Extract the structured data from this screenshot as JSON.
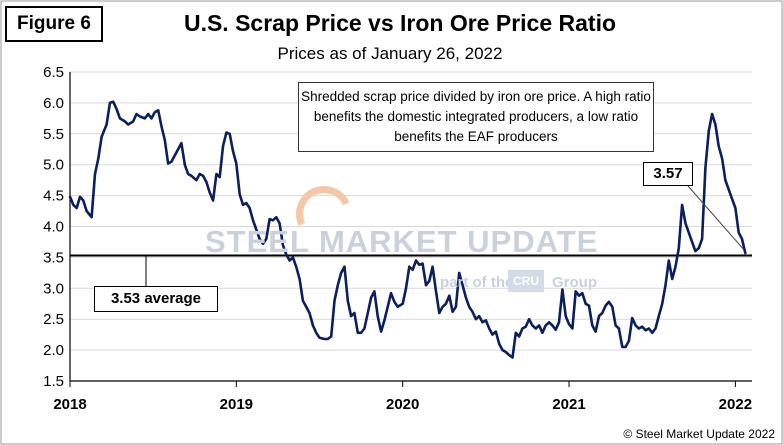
{
  "figure_label": "Figure 6",
  "copyright": "© Steel Market Update 2022",
  "watermark": {
    "brand": "STEEL MARKET UPDATE",
    "tagline_left": "part of the",
    "cru": "CRU",
    "tagline_right": "Group"
  },
  "colors": {
    "line": "#0b1f5c",
    "average": "#000000",
    "grid": "#d9d9d9"
  },
  "chart_data": {
    "type": "line",
    "title": "U.S. Scrap Price vs Iron Ore Price Ratio",
    "subtitle": "Prices as of January 26, 2022",
    "annotation": "Shredded  scrap price divided by iron ore price. A high ratio benefits the domestic integrated producers, a low ratio benefits the EAF producers",
    "average": {
      "value": 3.53,
      "label": "3.53 average"
    },
    "last_value_label": "3.57",
    "xlim": [
      2018.0,
      2022.1
    ],
    "ylim": [
      1.5,
      6.5
    ],
    "y_ticks": [
      "1.5",
      "2.0",
      "2.5",
      "3.0",
      "3.5",
      "4.0",
      "4.5",
      "5.0",
      "5.5",
      "6.0",
      "6.5"
    ],
    "x_ticks": [
      {
        "value": 2018,
        "label": "2018"
      },
      {
        "value": 2019,
        "label": "2019"
      },
      {
        "value": 2020,
        "label": "2020"
      },
      {
        "value": 2021,
        "label": "2021"
      },
      {
        "value": 2022,
        "label": "2022"
      }
    ],
    "grid": "horizontal",
    "series": [
      {
        "values": [
          [
            2018.0,
            4.48
          ],
          [
            2018.02,
            4.35
          ],
          [
            2018.04,
            4.3
          ],
          [
            2018.06,
            4.48
          ],
          [
            2018.08,
            4.42
          ],
          [
            2018.1,
            4.25
          ],
          [
            2018.13,
            4.15
          ],
          [
            2018.15,
            4.85
          ],
          [
            2018.17,
            5.1
          ],
          [
            2018.19,
            5.45
          ],
          [
            2018.22,
            5.65
          ],
          [
            2018.24,
            6.0
          ],
          [
            2018.26,
            6.02
          ],
          [
            2018.28,
            5.9
          ],
          [
            2018.3,
            5.75
          ],
          [
            2018.33,
            5.7
          ],
          [
            2018.35,
            5.65
          ],
          [
            2018.38,
            5.7
          ],
          [
            2018.4,
            5.82
          ],
          [
            2018.42,
            5.78
          ],
          [
            2018.45,
            5.75
          ],
          [
            2018.47,
            5.82
          ],
          [
            2018.49,
            5.75
          ],
          [
            2018.51,
            5.85
          ],
          [
            2018.53,
            5.88
          ],
          [
            2018.55,
            5.62
          ],
          [
            2018.57,
            5.4
          ],
          [
            2018.59,
            5.02
          ],
          [
            2018.61,
            5.05
          ],
          [
            2018.63,
            5.15
          ],
          [
            2018.65,
            5.25
          ],
          [
            2018.67,
            5.35
          ],
          [
            2018.69,
            5.0
          ],
          [
            2018.71,
            4.85
          ],
          [
            2018.73,
            4.82
          ],
          [
            2018.76,
            4.75
          ],
          [
            2018.78,
            4.85
          ],
          [
            2018.8,
            4.82
          ],
          [
            2018.82,
            4.72
          ],
          [
            2018.84,
            4.55
          ],
          [
            2018.86,
            4.42
          ],
          [
            2018.88,
            4.85
          ],
          [
            2018.9,
            4.8
          ],
          [
            2018.92,
            5.3
          ],
          [
            2018.94,
            5.52
          ],
          [
            2018.96,
            5.5
          ],
          [
            2018.98,
            5.22
          ],
          [
            2019.0,
            5.02
          ],
          [
            2019.02,
            4.52
          ],
          [
            2019.04,
            4.35
          ],
          [
            2019.06,
            4.38
          ],
          [
            2019.08,
            4.3
          ],
          [
            2019.1,
            4.1
          ],
          [
            2019.12,
            3.95
          ],
          [
            2019.14,
            3.8
          ],
          [
            2019.16,
            3.72
          ],
          [
            2019.18,
            3.8
          ],
          [
            2019.2,
            4.12
          ],
          [
            2019.22,
            4.1
          ],
          [
            2019.24,
            4.15
          ],
          [
            2019.26,
            4.05
          ],
          [
            2019.28,
            3.7
          ],
          [
            2019.3,
            3.55
          ],
          [
            2019.32,
            3.45
          ],
          [
            2019.34,
            3.5
          ],
          [
            2019.36,
            3.35
          ],
          [
            2019.38,
            3.15
          ],
          [
            2019.4,
            2.8
          ],
          [
            2019.42,
            2.7
          ],
          [
            2019.44,
            2.6
          ],
          [
            2019.46,
            2.4
          ],
          [
            2019.48,
            2.28
          ],
          [
            2019.5,
            2.2
          ],
          [
            2019.53,
            2.18
          ],
          [
            2019.55,
            2.18
          ],
          [
            2019.57,
            2.22
          ],
          [
            2019.59,
            2.8
          ],
          [
            2019.61,
            3.05
          ],
          [
            2019.63,
            3.25
          ],
          [
            2019.65,
            3.35
          ],
          [
            2019.67,
            2.8
          ],
          [
            2019.69,
            2.55
          ],
          [
            2019.71,
            2.6
          ],
          [
            2019.73,
            2.28
          ],
          [
            2019.75,
            2.28
          ],
          [
            2019.77,
            2.35
          ],
          [
            2019.79,
            2.6
          ],
          [
            2019.81,
            2.85
          ],
          [
            2019.83,
            2.95
          ],
          [
            2019.85,
            2.55
          ],
          [
            2019.87,
            2.3
          ],
          [
            2019.89,
            2.48
          ],
          [
            2019.91,
            2.7
          ],
          [
            2019.93,
            2.92
          ],
          [
            2019.95,
            2.78
          ],
          [
            2019.97,
            2.7
          ],
          [
            2020.0,
            2.75
          ],
          [
            2020.02,
            3.0
          ],
          [
            2020.04,
            3.35
          ],
          [
            2020.06,
            3.3
          ],
          [
            2020.08,
            3.45
          ],
          [
            2020.1,
            3.38
          ],
          [
            2020.12,
            3.4
          ],
          [
            2020.14,
            3.05
          ],
          [
            2020.16,
            3.12
          ],
          [
            2020.18,
            3.35
          ],
          [
            2020.2,
            2.95
          ],
          [
            2020.22,
            2.6
          ],
          [
            2020.24,
            2.7
          ],
          [
            2020.26,
            2.75
          ],
          [
            2020.28,
            2.88
          ],
          [
            2020.3,
            2.62
          ],
          [
            2020.32,
            2.7
          ],
          [
            2020.34,
            3.25
          ],
          [
            2020.36,
            3.05
          ],
          [
            2020.38,
            2.85
          ],
          [
            2020.4,
            2.7
          ],
          [
            2020.42,
            2.62
          ],
          [
            2020.44,
            2.5
          ],
          [
            2020.46,
            2.55
          ],
          [
            2020.48,
            2.45
          ],
          [
            2020.5,
            2.48
          ],
          [
            2020.52,
            2.35
          ],
          [
            2020.54,
            2.25
          ],
          [
            2020.56,
            2.3
          ],
          [
            2020.58,
            2.1
          ],
          [
            2020.6,
            2.0
          ],
          [
            2020.62,
            1.97
          ],
          [
            2020.64,
            1.92
          ],
          [
            2020.66,
            1.88
          ],
          [
            2020.68,
            2.28
          ],
          [
            2020.7,
            2.22
          ],
          [
            2020.72,
            2.35
          ],
          [
            2020.74,
            2.38
          ],
          [
            2020.76,
            2.5
          ],
          [
            2020.78,
            2.4
          ],
          [
            2020.8,
            2.35
          ],
          [
            2020.82,
            2.4
          ],
          [
            2020.84,
            2.28
          ],
          [
            2020.86,
            2.4
          ],
          [
            2020.88,
            2.45
          ],
          [
            2020.9,
            2.4
          ],
          [
            2020.92,
            2.33
          ],
          [
            2020.94,
            2.45
          ],
          [
            2020.96,
            2.98
          ],
          [
            2020.98,
            2.55
          ],
          [
            2021.0,
            2.42
          ],
          [
            2021.02,
            2.35
          ],
          [
            2021.04,
            2.95
          ],
          [
            2021.06,
            2.88
          ],
          [
            2021.08,
            2.92
          ],
          [
            2021.1,
            2.75
          ],
          [
            2021.12,
            2.72
          ],
          [
            2021.14,
            2.4
          ],
          [
            2021.16,
            2.3
          ],
          [
            2021.18,
            2.55
          ],
          [
            2021.2,
            2.6
          ],
          [
            2021.22,
            2.72
          ],
          [
            2021.24,
            2.78
          ],
          [
            2021.26,
            2.7
          ],
          [
            2021.28,
            2.4
          ],
          [
            2021.3,
            2.35
          ],
          [
            2021.32,
            2.05
          ],
          [
            2021.34,
            2.05
          ],
          [
            2021.36,
            2.15
          ],
          [
            2021.38,
            2.52
          ],
          [
            2021.4,
            2.4
          ],
          [
            2021.42,
            2.35
          ],
          [
            2021.44,
            2.38
          ],
          [
            2021.46,
            2.32
          ],
          [
            2021.48,
            2.35
          ],
          [
            2021.5,
            2.28
          ],
          [
            2021.52,
            2.35
          ],
          [
            2021.54,
            2.55
          ],
          [
            2021.56,
            2.75
          ],
          [
            2021.58,
            3.05
          ],
          [
            2021.6,
            3.45
          ],
          [
            2021.62,
            3.15
          ],
          [
            2021.64,
            3.35
          ],
          [
            2021.66,
            3.65
          ],
          [
            2021.68,
            4.35
          ],
          [
            2021.7,
            4.05
          ],
          [
            2021.72,
            3.9
          ],
          [
            2021.74,
            3.75
          ],
          [
            2021.76,
            3.6
          ],
          [
            2021.78,
            3.65
          ],
          [
            2021.8,
            3.8
          ],
          [
            2021.82,
            4.95
          ],
          [
            2021.84,
            5.55
          ],
          [
            2021.86,
            5.82
          ],
          [
            2021.88,
            5.65
          ],
          [
            2021.9,
            5.3
          ],
          [
            2021.92,
            5.1
          ],
          [
            2021.94,
            4.75
          ],
          [
            2021.96,
            4.6
          ],
          [
            2021.98,
            4.45
          ],
          [
            2022.0,
            4.3
          ],
          [
            2022.02,
            3.9
          ],
          [
            2022.04,
            3.8
          ],
          [
            2022.06,
            3.57
          ]
        ]
      }
    ]
  }
}
